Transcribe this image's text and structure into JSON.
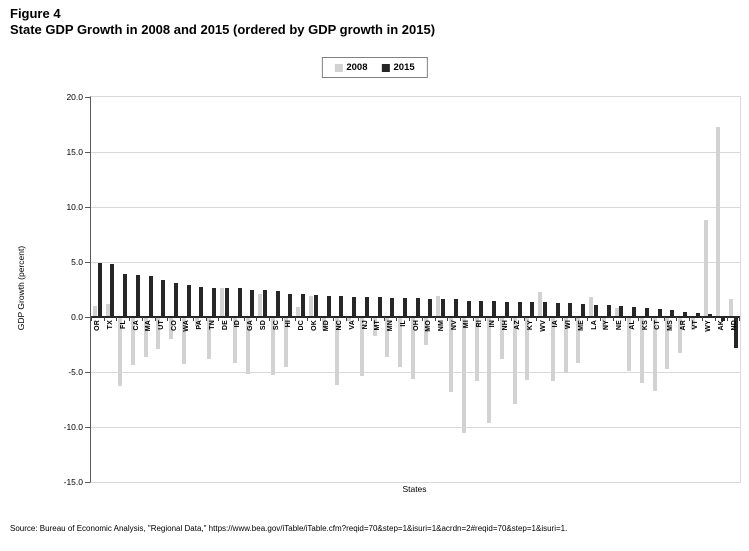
{
  "figure": {
    "label": "Figure 4",
    "title": "State GDP Growth in 2008 and 2015 (ordered by GDP growth in 2015)"
  },
  "legend": [
    {
      "label": "2008",
      "color": "#d2d2d2"
    },
    {
      "label": "2015",
      "color": "#262626"
    }
  ],
  "axes": {
    "y_label": "GDP Growth (percent)",
    "x_label": "States",
    "y_ticks": [
      "20.0",
      "15.0",
      "10.0",
      "5.0",
      "0.0",
      "-5.0",
      "-10.0",
      "-15.0"
    ]
  },
  "source": "Source: Bureau of Economic Analysis, \"Regional Data,\" https://www.bea.gov/iTable/iTable.cfm?reqid=70&step=1&isuri=1&acrdn=2#reqid=70&step=1&isuri=1.",
  "chart_data": {
    "type": "bar",
    "title": "State GDP Growth in 2008 and 2015 (ordered by GDP growth in 2015)",
    "xlabel": "States",
    "ylabel": "GDP Growth (percent)",
    "ylim": [
      -15,
      20
    ],
    "y_tick_step": 5,
    "grid": true,
    "legend_position": "top-center",
    "categories": [
      "OR",
      "TX",
      "FL",
      "CA",
      "MA",
      "UT",
      "CO",
      "WA",
      "PA",
      "TN",
      "DE",
      "ID",
      "GA",
      "SD",
      "SC",
      "HI",
      "DC",
      "OK",
      "MD",
      "NC",
      "VA",
      "NJ",
      "MT",
      "MN",
      "IL",
      "OH",
      "MO",
      "NM",
      "NV",
      "MI",
      "RI",
      "IN",
      "NH",
      "AZ",
      "KY",
      "WV",
      "IA",
      "WI",
      "ME",
      "LA",
      "NY",
      "NE",
      "AL",
      "KS",
      "CT",
      "MS",
      "AR",
      "VT",
      "WY",
      "AK",
      "ND"
    ],
    "series": [
      {
        "name": "2008",
        "color": "#d2d2d2",
        "values": [
          1.0,
          1.2,
          -6.3,
          -4.4,
          -3.6,
          -2.9,
          -2.0,
          -4.3,
          -0.8,
          -3.8,
          2.6,
          -4.2,
          -5.2,
          2.1,
          -5.3,
          -4.5,
          0.9,
          1.9,
          -1.2,
          -6.2,
          -0.4,
          -5.4,
          -1.7,
          -3.6,
          -4.5,
          -5.6,
          -2.5,
          1.9,
          -6.8,
          -10.5,
          -5.8,
          -9.6,
          -3.8,
          -7.9,
          -5.7,
          2.3,
          -5.8,
          -5.1,
          -4.2,
          1.8,
          -1.1,
          0.8,
          -4.9,
          -6.0,
          -6.7,
          -4.7,
          -3.3,
          -1.2,
          8.8,
          17.3,
          1.6
        ]
      },
      {
        "name": "2015",
        "color": "#262626",
        "values": [
          4.9,
          4.8,
          3.9,
          3.8,
          3.7,
          3.4,
          3.1,
          2.9,
          2.7,
          2.6,
          2.6,
          2.6,
          2.5,
          2.5,
          2.4,
          2.1,
          2.1,
          2.0,
          1.9,
          1.9,
          1.8,
          1.8,
          1.8,
          1.7,
          1.7,
          1.7,
          1.6,
          1.6,
          1.6,
          1.5,
          1.5,
          1.5,
          1.4,
          1.4,
          1.4,
          1.4,
          1.3,
          1.3,
          1.2,
          1.1,
          1.1,
          1.0,
          0.9,
          0.8,
          0.7,
          0.6,
          0.5,
          0.4,
          0.3,
          -0.4,
          -2.8
        ]
      }
    ]
  }
}
